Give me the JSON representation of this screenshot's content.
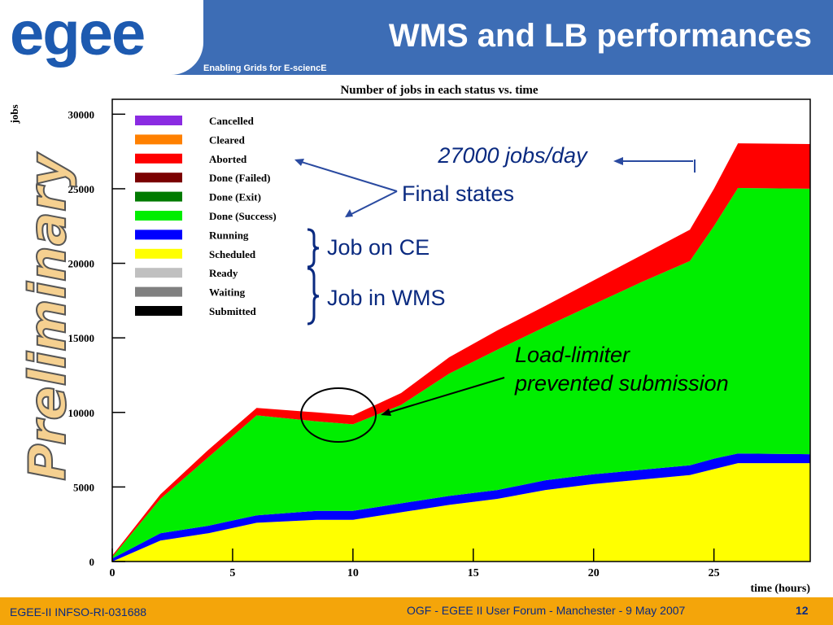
{
  "header": {
    "logo_text": "egee",
    "title": "WMS and LB performances",
    "tagline": "Enabling Grids for E-sciencE"
  },
  "footer": {
    "left": "EGEE-II INFSO-RI-031688",
    "center": "OGF - EGEE II User Forum - Manchester - 9 May 2007",
    "page": "12"
  },
  "watermark": "Preliminary",
  "chart_data": {
    "type": "area",
    "title": "Number of jobs in each status vs. time",
    "xlabel": "time (hours)",
    "ylabel": "jobs",
    "xlim": [
      0,
      29
    ],
    "ylim": [
      0,
      31000
    ],
    "x_ticks": [
      0,
      5,
      10,
      15,
      20,
      25
    ],
    "y_ticks": [
      0,
      5000,
      10000,
      15000,
      20000,
      25000,
      30000
    ],
    "x": [
      0,
      2,
      4,
      6,
      8.5,
      10,
      12,
      14,
      16,
      18,
      20,
      22,
      24,
      25,
      26,
      29
    ],
    "series": [
      {
        "name": "Scheduled",
        "color": "#ffff00",
        "values": [
          0,
          1400,
          1900,
          2600,
          2800,
          2800,
          3300,
          3800,
          4200,
          4800,
          5200,
          5500,
          5800,
          6200,
          6600,
          6600
        ]
      },
      {
        "name": "Running",
        "color": "#0000ff",
        "values": [
          200,
          500,
          500,
          500,
          600,
          600,
          600,
          600,
          600,
          650,
          650,
          650,
          650,
          700,
          650,
          600
        ]
      },
      {
        "name": "Done (Success)",
        "color": "#00ee00",
        "values": [
          100,
          2300,
          4600,
          6700,
          6000,
          5800,
          6600,
          8200,
          9400,
          10300,
          11400,
          12600,
          13700,
          15600,
          17800,
          17800
        ]
      },
      {
        "name": "Aborted",
        "color": "#ff0000",
        "values": [
          100,
          300,
          500,
          500,
          600,
          600,
          800,
          1100,
          1300,
          1400,
          1600,
          1800,
          2100,
          2500,
          3000,
          3000
        ]
      }
    ],
    "legend": [
      "Cancelled",
      "Cleared",
      "Aborted",
      "Done (Failed)",
      "Done (Exit)",
      "Done (Success)",
      "Running",
      "Scheduled",
      "Ready",
      "Waiting",
      "Submitted"
    ],
    "legend_colors": [
      "#8a2be2",
      "#ff8000",
      "#ff0000",
      "#7a0000",
      "#007a00",
      "#00ee00",
      "#0000ff",
      "#ffff00",
      "#c0c0c0",
      "#808080",
      "#000000"
    ],
    "legend_position": "top-left",
    "annotations": {
      "rate": "27000 jobs/day",
      "final_states": "Final states",
      "job_on_ce": "Job on CE",
      "job_in_wms": "Job in WMS",
      "load_limiter_1": "Load-limiter",
      "load_limiter_2": "prevented submission"
    }
  }
}
